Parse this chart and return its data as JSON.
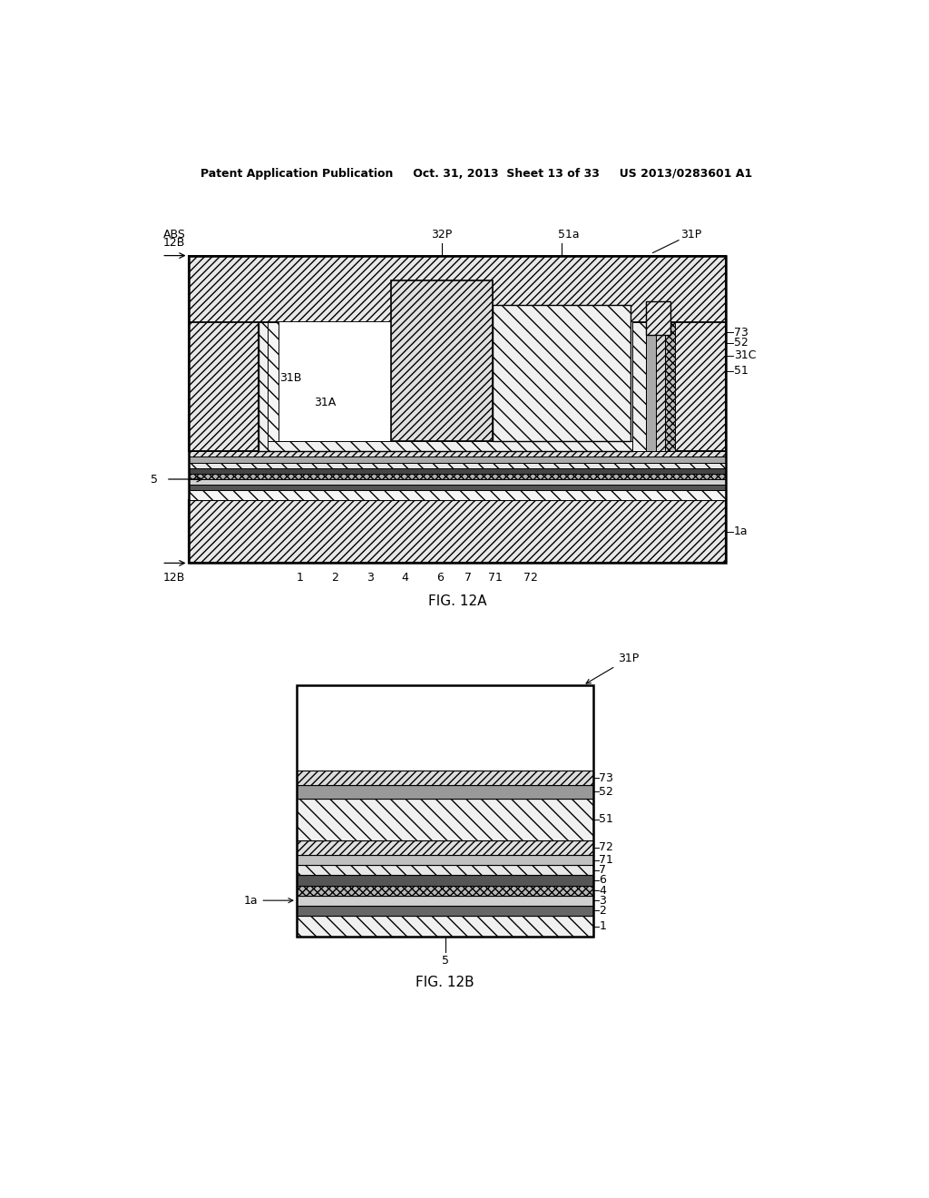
{
  "bg_color": "#ffffff",
  "header_text": "Patent Application Publication     Oct. 31, 2013  Sheet 13 of 33     US 2013/0283601 A1",
  "fig12a_label": "FIG. 12A",
  "fig12b_label": "FIG. 12B",
  "line_color": "#000000"
}
